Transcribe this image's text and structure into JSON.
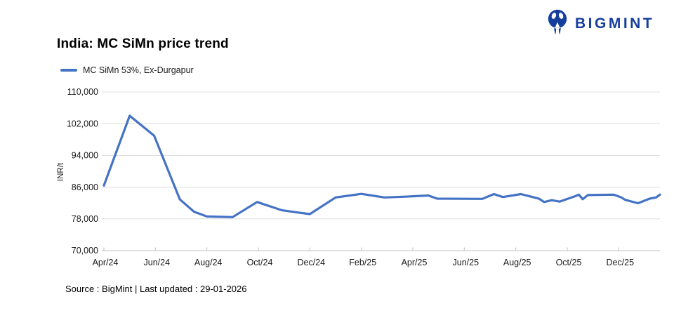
{
  "logo": {
    "text": "BIGMINT",
    "color": "#163F9C",
    "icon": "bigmint-mascot-icon"
  },
  "chart": {
    "title": "India: MC SiMn price trend",
    "legend_label": "MC SiMn 53%, Ex-Durgapur",
    "ylabel": "INR/t"
  },
  "footer": {
    "source": "Source : BigMint | Last updated : 29-01-2026"
  },
  "colors": {
    "line": "#4472C4",
    "grid": "#DCDCDC",
    "axis": "#BFBFBF",
    "tick_text": "#1A1A1A",
    "logo_blue": "#163F9C"
  },
  "chart_data": {
    "type": "line",
    "title": "India: MC SiMn price trend",
    "ylabel": "INR/t",
    "ylim": [
      70000,
      110000
    ],
    "y_tick_values": [
      70000,
      78000,
      86000,
      94000,
      102000,
      110000
    ],
    "y_tick_labels": [
      "70,000",
      "78,000",
      "86,000",
      "94,000",
      "102,000",
      "110,000"
    ],
    "x_tick_labels": [
      "Apr/24",
      "Jun/24",
      "Aug/24",
      "Oct/24",
      "Dec/24",
      "Feb/25",
      "Apr/25",
      "Jun/25",
      "Aug/25",
      "Oct/25",
      "Dec/25"
    ],
    "x_tick_month_index": [
      0,
      2,
      4,
      6,
      8,
      10,
      12,
      14,
      16,
      18,
      20
    ],
    "x_unit": "months since Apr/24",
    "x_max": 21.6,
    "grid": "horizontal",
    "legend_position": "top-left",
    "series": [
      {
        "name": "MC SiMn 53%, Ex-Durgapur",
        "color": "#4472C4",
        "points": [
          [
            0,
            86400
          ],
          [
            1,
            104000
          ],
          [
            1.95,
            99000
          ],
          [
            2.95,
            82900
          ],
          [
            3.5,
            79800
          ],
          [
            4,
            78600
          ],
          [
            5,
            78450
          ],
          [
            5.95,
            82250
          ],
          [
            6.9,
            80200
          ],
          [
            7.55,
            79600
          ],
          [
            8,
            79200
          ],
          [
            9,
            83400
          ],
          [
            10,
            84300
          ],
          [
            10.9,
            83400
          ],
          [
            11.7,
            83600
          ],
          [
            12.6,
            83900
          ],
          [
            12.95,
            83100
          ],
          [
            14.7,
            83050
          ],
          [
            15.15,
            84250
          ],
          [
            15.5,
            83500
          ],
          [
            16.2,
            84250
          ],
          [
            16.9,
            83100
          ],
          [
            17.1,
            82250
          ],
          [
            17.4,
            82700
          ],
          [
            17.7,
            82350
          ],
          [
            18.3,
            83700
          ],
          [
            18.45,
            84100
          ],
          [
            18.6,
            82950
          ],
          [
            18.8,
            84000
          ],
          [
            19.8,
            84100
          ],
          [
            20.1,
            83400
          ],
          [
            20.25,
            82800
          ],
          [
            20.75,
            81950
          ],
          [
            21.2,
            83100
          ],
          [
            21.45,
            83400
          ],
          [
            21.6,
            84100
          ]
        ]
      }
    ]
  }
}
